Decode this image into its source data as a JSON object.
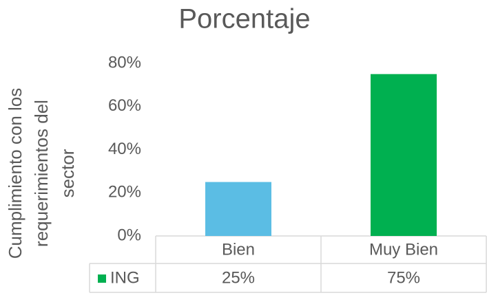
{
  "chart_data": {
    "type": "bar",
    "title": "Porcentaje",
    "ylabel": [
      "Cumplimiento con los",
      "requerimientos del",
      "sector"
    ],
    "categories": [
      "Bien",
      "Muy Bien"
    ],
    "series": [
      {
        "name": "ING",
        "color": "#00b050",
        "point_colors": [
          "#5bbde4",
          "#00b050"
        ],
        "values": [
          25,
          75
        ],
        "value_labels": [
          "25%",
          "75%"
        ]
      }
    ],
    "ylim": [
      0,
      80
    ],
    "yticks": [
      {
        "value": 0,
        "label": "0%"
      },
      {
        "value": 20,
        "label": "20%"
      },
      {
        "value": 40,
        "label": "40%"
      },
      {
        "value": 60,
        "label": "60%"
      },
      {
        "value": 80,
        "label": "80%"
      }
    ],
    "grid": false,
    "data_table": true
  }
}
